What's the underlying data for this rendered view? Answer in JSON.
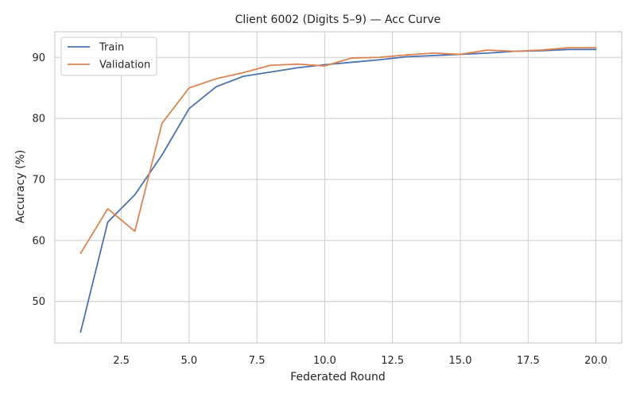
{
  "chart_data": {
    "type": "line",
    "title": "Client 6002 (Digits 5–9) — Acc Curve",
    "xlabel": "Federated Round",
    "ylabel": "Accuracy (%)",
    "xlim": [
      0.05,
      20.95
    ],
    "ylim": [
      43.2,
      94.2
    ],
    "xticks": [
      2.5,
      5.0,
      7.5,
      10.0,
      12.5,
      15.0,
      17.5,
      20.0
    ],
    "xtick_labels": [
      "2.5",
      "5.0",
      "7.5",
      "10.0",
      "12.5",
      "15.0",
      "17.5",
      "20.0"
    ],
    "yticks": [
      50,
      60,
      70,
      80,
      90
    ],
    "ytick_labels": [
      "50",
      "60",
      "70",
      "80",
      "90"
    ],
    "grid": true,
    "legend_position": "top-left",
    "x": [
      1,
      2,
      3,
      4,
      5,
      6,
      7,
      8,
      9,
      10,
      11,
      12,
      13,
      14,
      15,
      16,
      17,
      18,
      19,
      20
    ],
    "series": [
      {
        "name": "Train",
        "color": "#4c72b0",
        "values": [
          45.0,
          63.0,
          67.5,
          74.0,
          81.6,
          85.2,
          86.9,
          87.6,
          88.3,
          88.8,
          89.2,
          89.6,
          90.1,
          90.3,
          90.5,
          90.7,
          91.0,
          91.1,
          91.3,
          91.3
        ]
      },
      {
        "name": "Validation",
        "color": "#dd8452",
        "values": [
          57.9,
          65.2,
          61.5,
          79.2,
          85.0,
          86.5,
          87.5,
          88.7,
          88.9,
          88.6,
          89.9,
          90.0,
          90.4,
          90.7,
          90.5,
          91.2,
          91.0,
          91.2,
          91.6,
          91.6
        ]
      }
    ]
  }
}
